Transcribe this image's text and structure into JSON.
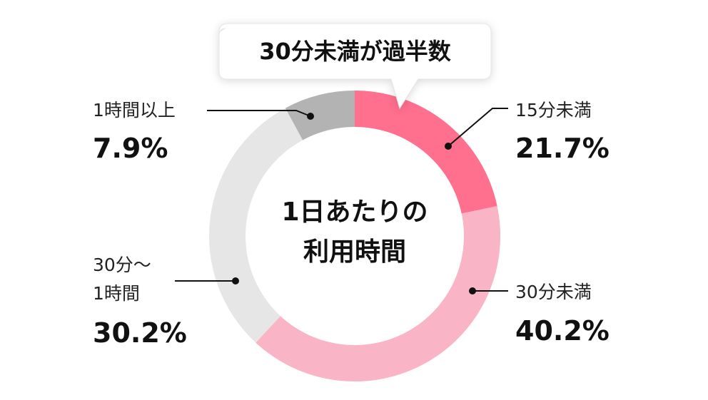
{
  "chart_data": {
    "type": "donut",
    "title": "1日あたりの\n利用時間",
    "annotation": "30分未満が過半数",
    "categories": [
      "15分未満",
      "30分未満",
      "30分〜\n1時間",
      "1時間以上"
    ],
    "values": [
      21.7,
      40.2,
      30.2,
      7.9
    ],
    "value_labels": [
      "21.7%",
      "40.2%",
      "30.2%",
      "7.9%"
    ],
    "colors": [
      "#ff6f8e",
      "#f9b4c6",
      "#e6e6e6",
      "#b3b3b3"
    ]
  }
}
